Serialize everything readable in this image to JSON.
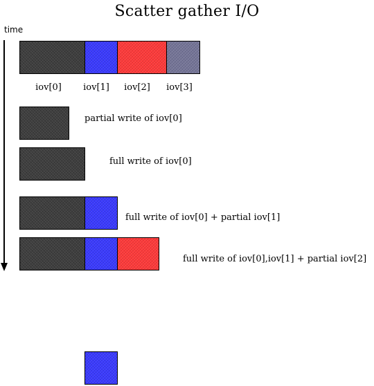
{
  "title": "Scatter gather I/O",
  "time_label": "time",
  "iov_labels": [
    "iov[0]",
    "iov[1]",
    "iov[2]",
    "iov[3]"
  ],
  "colors": {
    "iov0": "#3f3f3f",
    "iov1": "#3b3bff",
    "iov2": "#ff3b3b",
    "iov3": "#777798"
  },
  "steps": [
    {
      "caption": "partial write of iov[0]"
    },
    {
      "caption": "full write of iov[0]"
    },
    {
      "caption": "full write of iov[0] + partial iov[1]"
    },
    {
      "caption": "full write of iov[0],iov[1] + partial iov[2]"
    }
  ]
}
